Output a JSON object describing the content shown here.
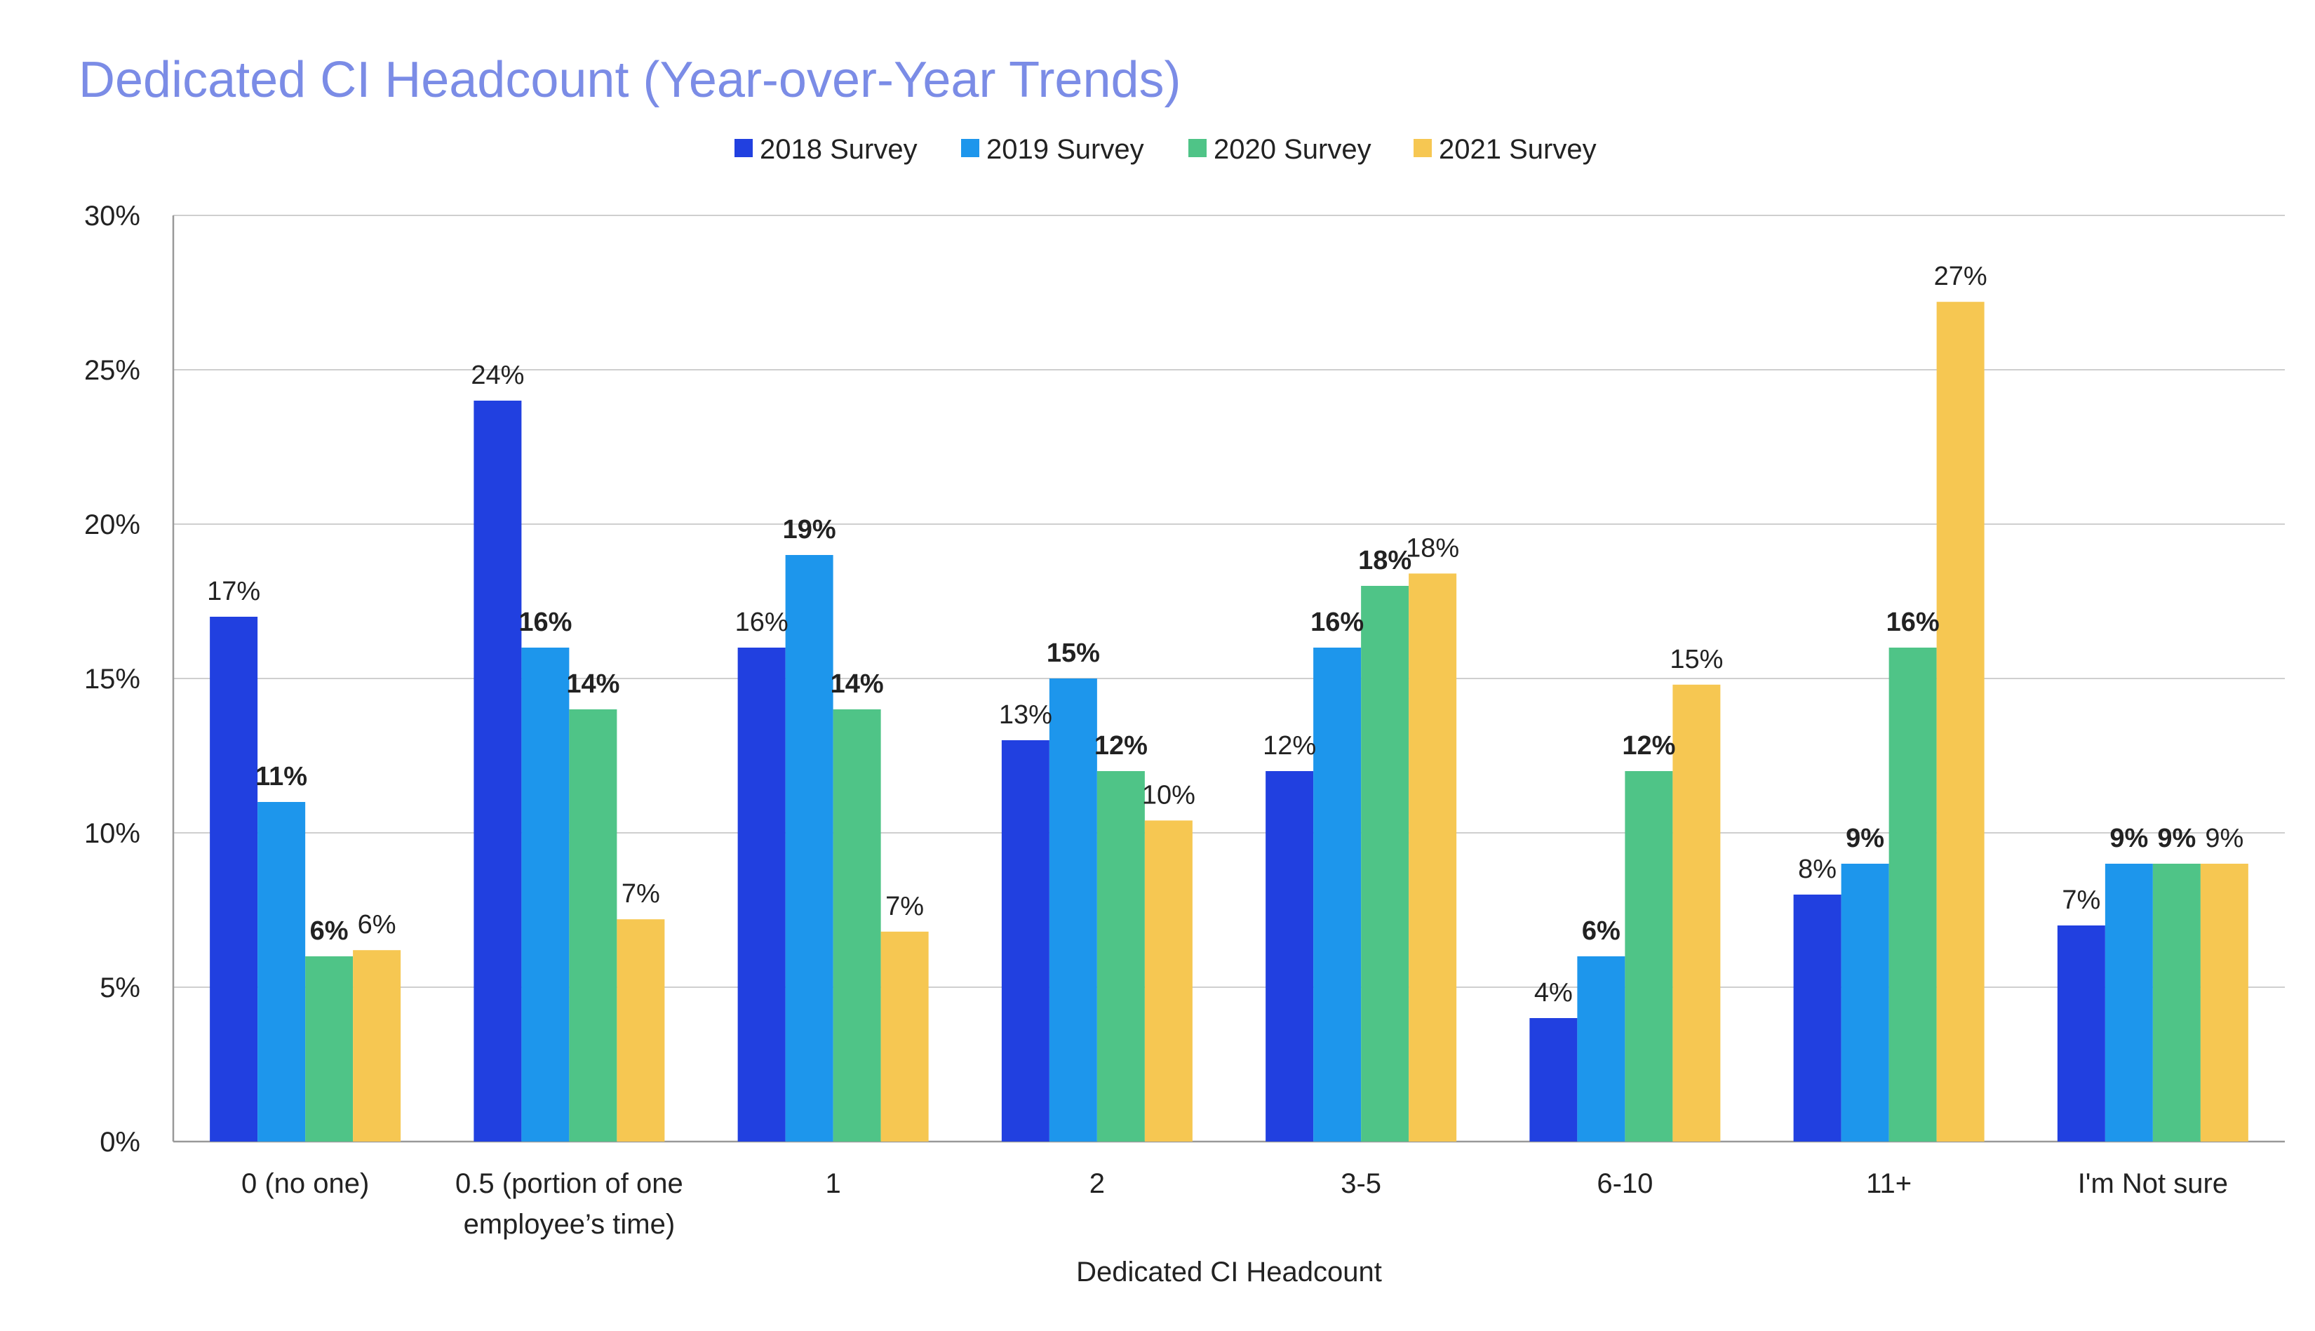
{
  "chart_data": {
    "type": "bar",
    "title": "Dedicated CI Headcount (Year-over-Year Trends)",
    "xlabel": "Dedicated CI Headcount",
    "ylabel": "",
    "ylim": [
      0,
      30
    ],
    "yticks": [
      "0%",
      "5%",
      "10%",
      "15%",
      "20%",
      "25%",
      "30%"
    ],
    "ytick_values": [
      0,
      5,
      10,
      15,
      20,
      25,
      30
    ],
    "grid": true,
    "legend_position": "top",
    "categories": [
      "0 (no one)",
      "0.5 (portion of one employee’s time)",
      "1",
      "2",
      "3-5",
      "6-10",
      "11+",
      "I'm Not sure"
    ],
    "category_lines": [
      [
        "0 (no one)"
      ],
      [
        "0.5 (portion of one",
        "employee’s time)"
      ],
      [
        "1"
      ],
      [
        "2"
      ],
      [
        "3-5"
      ],
      [
        "6-10"
      ],
      [
        "11+"
      ],
      [
        "I'm Not sure"
      ]
    ],
    "series": [
      {
        "name": "2018 Survey",
        "color": "#2140e0",
        "values": [
          17,
          24,
          16,
          13,
          12,
          4,
          8,
          7
        ],
        "labels": [
          "17%",
          "24%",
          "16%",
          "13%",
          "12%",
          "4%",
          "8%",
          "7%"
        ],
        "bold": [
          false,
          false,
          false,
          false,
          false,
          false,
          false,
          false
        ]
      },
      {
        "name": "2019 Survey",
        "color": "#1d96ec",
        "values": [
          11,
          16,
          19,
          15,
          16,
          6,
          9,
          9
        ],
        "labels": [
          "11%",
          "16%",
          "19%",
          "15%",
          "16%",
          "6%",
          "9%",
          "9%"
        ],
        "bold": [
          true,
          true,
          true,
          true,
          true,
          true,
          true,
          true
        ]
      },
      {
        "name": "2020 Survey",
        "color": "#4fc487",
        "values": [
          6,
          14,
          14,
          12,
          18,
          12,
          16,
          9
        ],
        "labels": [
          "6%",
          "14%",
          "14%",
          "12%",
          "18%",
          "12%",
          "16%",
          "9%"
        ],
        "bold": [
          true,
          true,
          true,
          true,
          true,
          true,
          true,
          true
        ]
      },
      {
        "name": "2021 Survey",
        "color": "#f6c752",
        "values": [
          6.2,
          7.2,
          6.8,
          10.4,
          18.4,
          14.8,
          27.2,
          9
        ],
        "labels": [
          "6%",
          "7%",
          "7%",
          "10%",
          "18%",
          "15%",
          "27%",
          "9%"
        ],
        "bold": [
          false,
          false,
          false,
          false,
          false,
          false,
          false,
          false
        ]
      }
    ],
    "title_color": "#7b8ce6"
  }
}
